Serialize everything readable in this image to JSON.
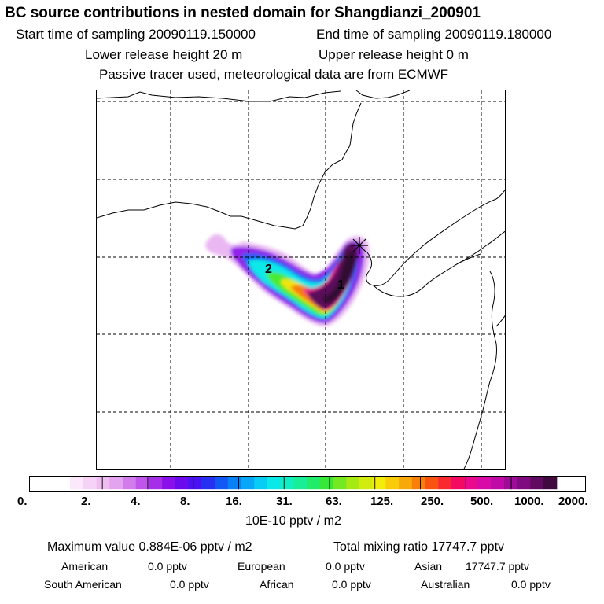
{
  "header": {
    "title": "BC  source contributions in nested domain for Shangdianzi_200901",
    "start_time": "Start time of sampling 20090119.150000",
    "end_time": "End time of sampling 20090119.180000",
    "lower_height": "Lower release height   20 m",
    "upper_height": "Upper release height    0 m",
    "tracer_note": "Passive tracer used, meteorological data are from ECMWF"
  },
  "map": {
    "markers": [
      {
        "label": "1",
        "name": "marker-1"
      },
      {
        "label": "2",
        "name": "marker-2"
      }
    ],
    "receptor_symbol": "✳"
  },
  "colorbar": {
    "labels": [
      "0.",
      "2.",
      "4.",
      "8.",
      "16.",
      "31.",
      "63.",
      "125.",
      "250.",
      "500.",
      "1000.",
      "2000."
    ],
    "colors": [
      "#ffffff",
      "#fbe8fb",
      "#f6d3f6",
      "#efbdf0",
      "#e3a3ee",
      "#d27cec",
      "#bf55ea",
      "#a62ee9",
      "#8a10ea",
      "#6a0aed",
      "#4a12f0",
      "#2630f3",
      "#1258f5",
      "#0a80f6",
      "#08a6f7",
      "#08ccf5",
      "#0ae8e8",
      "#10eec4",
      "#18ee98",
      "#20ec6a",
      "#38e838",
      "#74e820",
      "#a6ea14",
      "#d2ec0e",
      "#f4ec0a",
      "#f8cc08",
      "#f8a808",
      "#f88008",
      "#f85410",
      "#f82a30",
      "#f40a60",
      "#ea0a8c",
      "#d80aa8",
      "#c00aa8",
      "#a00a98",
      "#800a80",
      "#600a60",
      "#400a40"
    ],
    "units": "10E-10 pptv / m2"
  },
  "summary": {
    "max_value": "Maximum value  0.884E-06 pptv / m2",
    "total_ratio": "Total mixing ratio    17747.7 pptv"
  },
  "sources": [
    {
      "name": "American",
      "value": "0.0 pptv"
    },
    {
      "name": "European",
      "value": "0.0 pptv"
    },
    {
      "name": "Asian",
      "value": "17747.7 pptv"
    },
    {
      "name": "South American",
      "value": "0.0 pptv"
    },
    {
      "name": "African",
      "value": "0.0 pptv"
    },
    {
      "name": "Australian",
      "value": "0.0 pptv"
    }
  ]
}
